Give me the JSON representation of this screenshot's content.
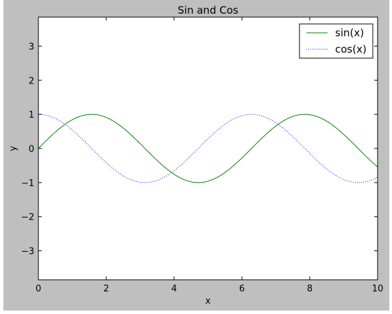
{
  "chart_data": {
    "type": "line",
    "title": "Sin and Cos",
    "xlabel": "x",
    "ylabel": "y",
    "xlim": [
      0,
      10
    ],
    "ylim": [
      -3.85,
      3.85
    ],
    "xticks": [
      0,
      2,
      4,
      6,
      8,
      10
    ],
    "yticks": [
      -3,
      -2,
      -1,
      0,
      1,
      2,
      3
    ],
    "xtick_labels": [
      "0",
      "2",
      "4",
      "6",
      "8",
      "10"
    ],
    "ytick_labels": [
      "−3",
      "−2",
      "−1",
      "0",
      "1",
      "2",
      "3"
    ],
    "grid": false,
    "legend_position": "top-right",
    "series": [
      {
        "name": "sin(x)",
        "function": "sin",
        "color": "#008000",
        "style": "solid",
        "x": [
          0,
          0.5,
          1,
          1.5,
          2,
          2.5,
          3,
          3.5,
          4,
          4.5,
          5,
          5.5,
          6,
          6.5,
          7,
          7.5,
          8,
          8.5,
          9,
          9.5,
          10
        ],
        "y": [
          0,
          0.48,
          0.84,
          1.0,
          0.91,
          0.6,
          0.14,
          -0.35,
          -0.76,
          -0.98,
          -0.96,
          -0.71,
          -0.28,
          0.22,
          0.66,
          0.94,
          0.99,
          0.8,
          0.41,
          -0.08,
          -0.54
        ]
      },
      {
        "name": "cos(x)",
        "function": "cos",
        "color": "#0000ff",
        "style": "dotted",
        "x": [
          0,
          0.5,
          1,
          1.5,
          2,
          2.5,
          3,
          3.5,
          4,
          4.5,
          5,
          5.5,
          6,
          6.5,
          7,
          7.5,
          8,
          8.5,
          9,
          9.5,
          10
        ],
        "y": [
          1.0,
          0.88,
          0.54,
          0.07,
          -0.42,
          -0.8,
          -0.99,
          -0.94,
          -0.65,
          -0.21,
          0.28,
          0.71,
          0.96,
          0.98,
          0.75,
          0.35,
          -0.15,
          -0.6,
          -0.91,
          -1.0,
          -0.84
        ]
      }
    ]
  }
}
